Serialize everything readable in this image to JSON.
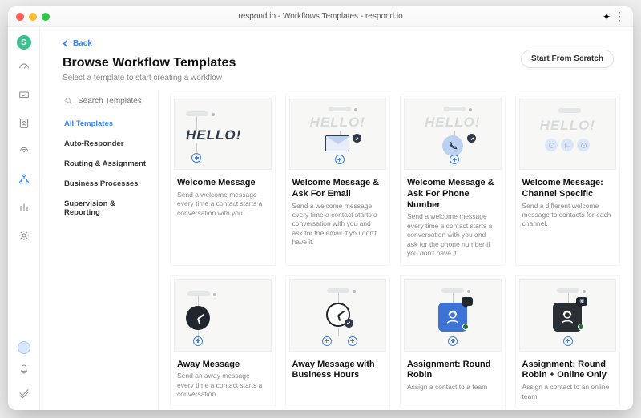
{
  "window": {
    "title": "respond.io - Workflows Templates - respond.io",
    "workspace_initial": "S"
  },
  "header": {
    "back_label": "Back",
    "title": "Browse Workflow Templates",
    "subtitle": "Select a template to start creating a workflow",
    "scratch_button": "Start From Scratch"
  },
  "search": {
    "placeholder": "Search Templates"
  },
  "categories": [
    {
      "label": "All Templates",
      "active": true
    },
    {
      "label": "Auto-Responder",
      "active": false
    },
    {
      "label": "Routing & Assignment",
      "active": false
    },
    {
      "label": "Business Processes",
      "active": false
    },
    {
      "label": "Supervision & Reporting",
      "active": false
    }
  ],
  "templates": [
    {
      "title": "Welcome Message",
      "desc": "Send a welcome message every time a contact starts a conversation with you.",
      "hello": "HELLO!",
      "hello_style": "dark",
      "thumb": "hello-plain"
    },
    {
      "title": "Welcome Message & Ask For Email",
      "desc": "Send a welcome message every time a contact starts a conversation with you and ask for the email if you don't have it.",
      "hello": "HELLO!",
      "hello_style": "gray",
      "thumb": "hello-email"
    },
    {
      "title": "Welcome Message & Ask For Phone Number",
      "desc": "Send a welcome message every time a contact starts a conversation with you and ask for the phone number if you don't have it.",
      "hello": "HELLO!",
      "hello_style": "gray",
      "thumb": "hello-phone"
    },
    {
      "title": "Welcome Message: Channel Specific",
      "desc": "Send a different welcome message to contacts for each channel.",
      "hello": "HELLO!",
      "hello_style": "gray",
      "thumb": "hello-channels"
    },
    {
      "title": "Away Message",
      "desc": "Send an away message every time a contact starts a conversation.",
      "thumb": "clock-dark"
    },
    {
      "title": "Away Message with Business Hours",
      "desc": "",
      "thumb": "clock-light"
    },
    {
      "title": "Assignment: Round Robin",
      "desc": "Assign a contact to a team",
      "thumb": "agent-blue"
    },
    {
      "title": "Assignment: Round Robin + Online Only",
      "desc": "Assign a contact to an online team",
      "thumb": "agent-dark"
    }
  ],
  "colors": {
    "accent": "#3b82f6"
  }
}
